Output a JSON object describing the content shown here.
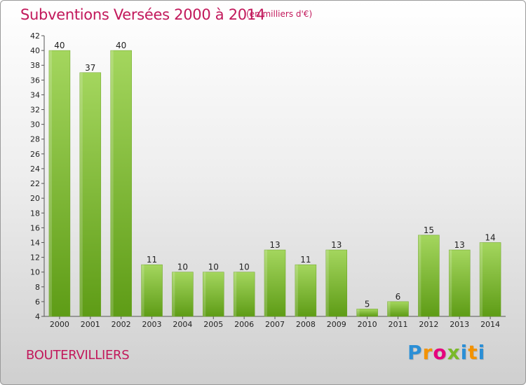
{
  "chart_data": {
    "type": "bar",
    "title": "Subventions Versées 2000 à 2014",
    "subtitle": "(en milliers d'€)",
    "categories": [
      "2000",
      "2001",
      "2002",
      "2003",
      "2004",
      "2005",
      "2006",
      "2007",
      "2008",
      "2009",
      "2010",
      "2011",
      "2012",
      "2013",
      "2014"
    ],
    "values": [
      40,
      37,
      40,
      11,
      10,
      10,
      10,
      13,
      11,
      13,
      5,
      6,
      15,
      13,
      14
    ],
    "ylim": [
      4,
      42
    ],
    "yticks": [
      4,
      6,
      8,
      10,
      12,
      14,
      16,
      18,
      20,
      22,
      24,
      26,
      28,
      30,
      32,
      34,
      36,
      38,
      40,
      42
    ],
    "grid": false,
    "bar_color": "#8cc63f"
  },
  "footer": {
    "place": "BOUTERVILLIERS",
    "logo_letters": [
      "P",
      "r",
      "o",
      "x",
      "i",
      "t",
      "i"
    ],
    "logo_colors": [
      "#2b8fd6",
      "#f39200",
      "#e5007d",
      "#7ab929",
      "#2b8fd6",
      "#f39200",
      "#2b8fd6"
    ]
  }
}
